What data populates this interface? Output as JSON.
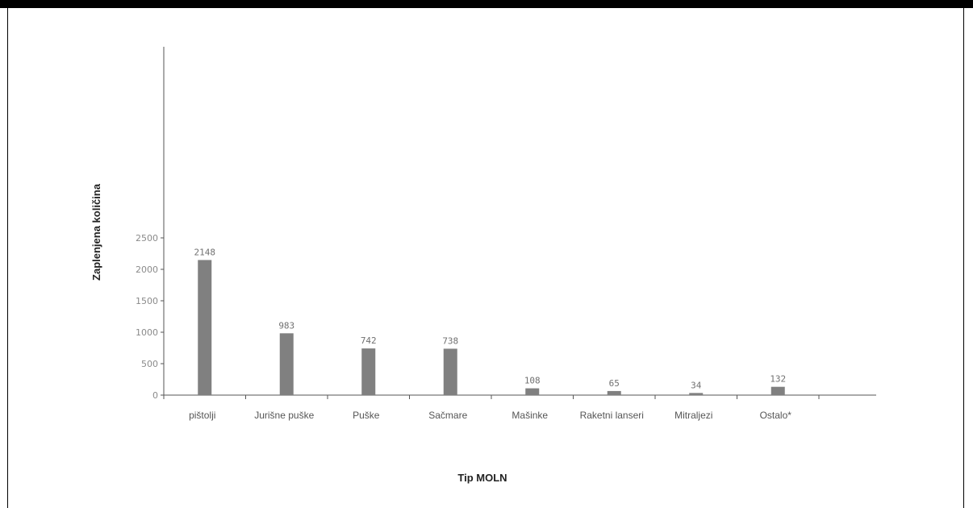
{
  "chart_data": {
    "type": "bar",
    "xlabel": "Tip MOLN",
    "ylabel": "Zaplenjena količina",
    "categories": [
      "pištolji",
      "Jurišne puške",
      "Puške",
      "Sačmare",
      "Mašinke",
      "Raketni lanseri",
      "Mitraljezi",
      "Ostalo*"
    ],
    "values": [
      2148,
      983,
      742,
      738,
      108,
      65,
      34,
      132
    ],
    "value_labels": [
      "2148",
      "983",
      "742",
      "738",
      "108",
      "65",
      "34",
      "132"
    ],
    "yticks": [
      0,
      500,
      1000,
      1500,
      2000,
      2500
    ],
    "ytick_labels": [
      "0",
      "500",
      "1000",
      "1500",
      "2000",
      "2500"
    ],
    "ylim": [
      0,
      2800
    ],
    "grid": false,
    "legend": "none",
    "bar_color": "#808080",
    "axis_color": "#555555"
  }
}
